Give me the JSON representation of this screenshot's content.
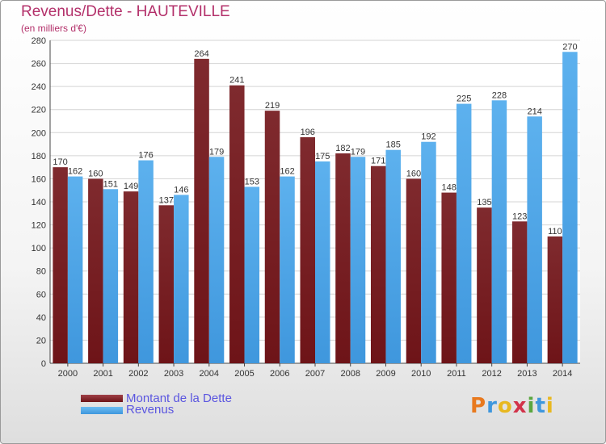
{
  "title": "Revenus/Dette - HAUTEVILLE",
  "subtitle": "(en milliers d'€)",
  "colors": {
    "dette": "#6e1418",
    "revenus": "#3f97dd",
    "title": "#b3306a",
    "legend_text": "#5a55e0"
  },
  "logo_text": "Proxiti",
  "chart_data": {
    "type": "bar",
    "title": "Revenus/Dette - HAUTEVILLE",
    "subtitle": "(en milliers d'€)",
    "categories": [
      "2000",
      "2001",
      "2002",
      "2003",
      "2004",
      "2005",
      "2006",
      "2007",
      "2008",
      "2009",
      "2010",
      "2011",
      "2012",
      "2013",
      "2014"
    ],
    "series": [
      {
        "name": "Montant de la Dette",
        "values": [
          170,
          160,
          149,
          137,
          264,
          241,
          219,
          196,
          182,
          171,
          160,
          148,
          135,
          123,
          110
        ]
      },
      {
        "name": "Revenus",
        "values": [
          162,
          151,
          176,
          146,
          179,
          153,
          162,
          175,
          179,
          185,
          192,
          225,
          228,
          214,
          270
        ]
      }
    ],
    "ylim": [
      0,
      280
    ],
    "yticks": [
      0,
      20,
      40,
      60,
      80,
      100,
      120,
      140,
      160,
      180,
      200,
      220,
      240,
      260,
      280
    ],
    "grid": true,
    "legend": "bottom-left"
  }
}
